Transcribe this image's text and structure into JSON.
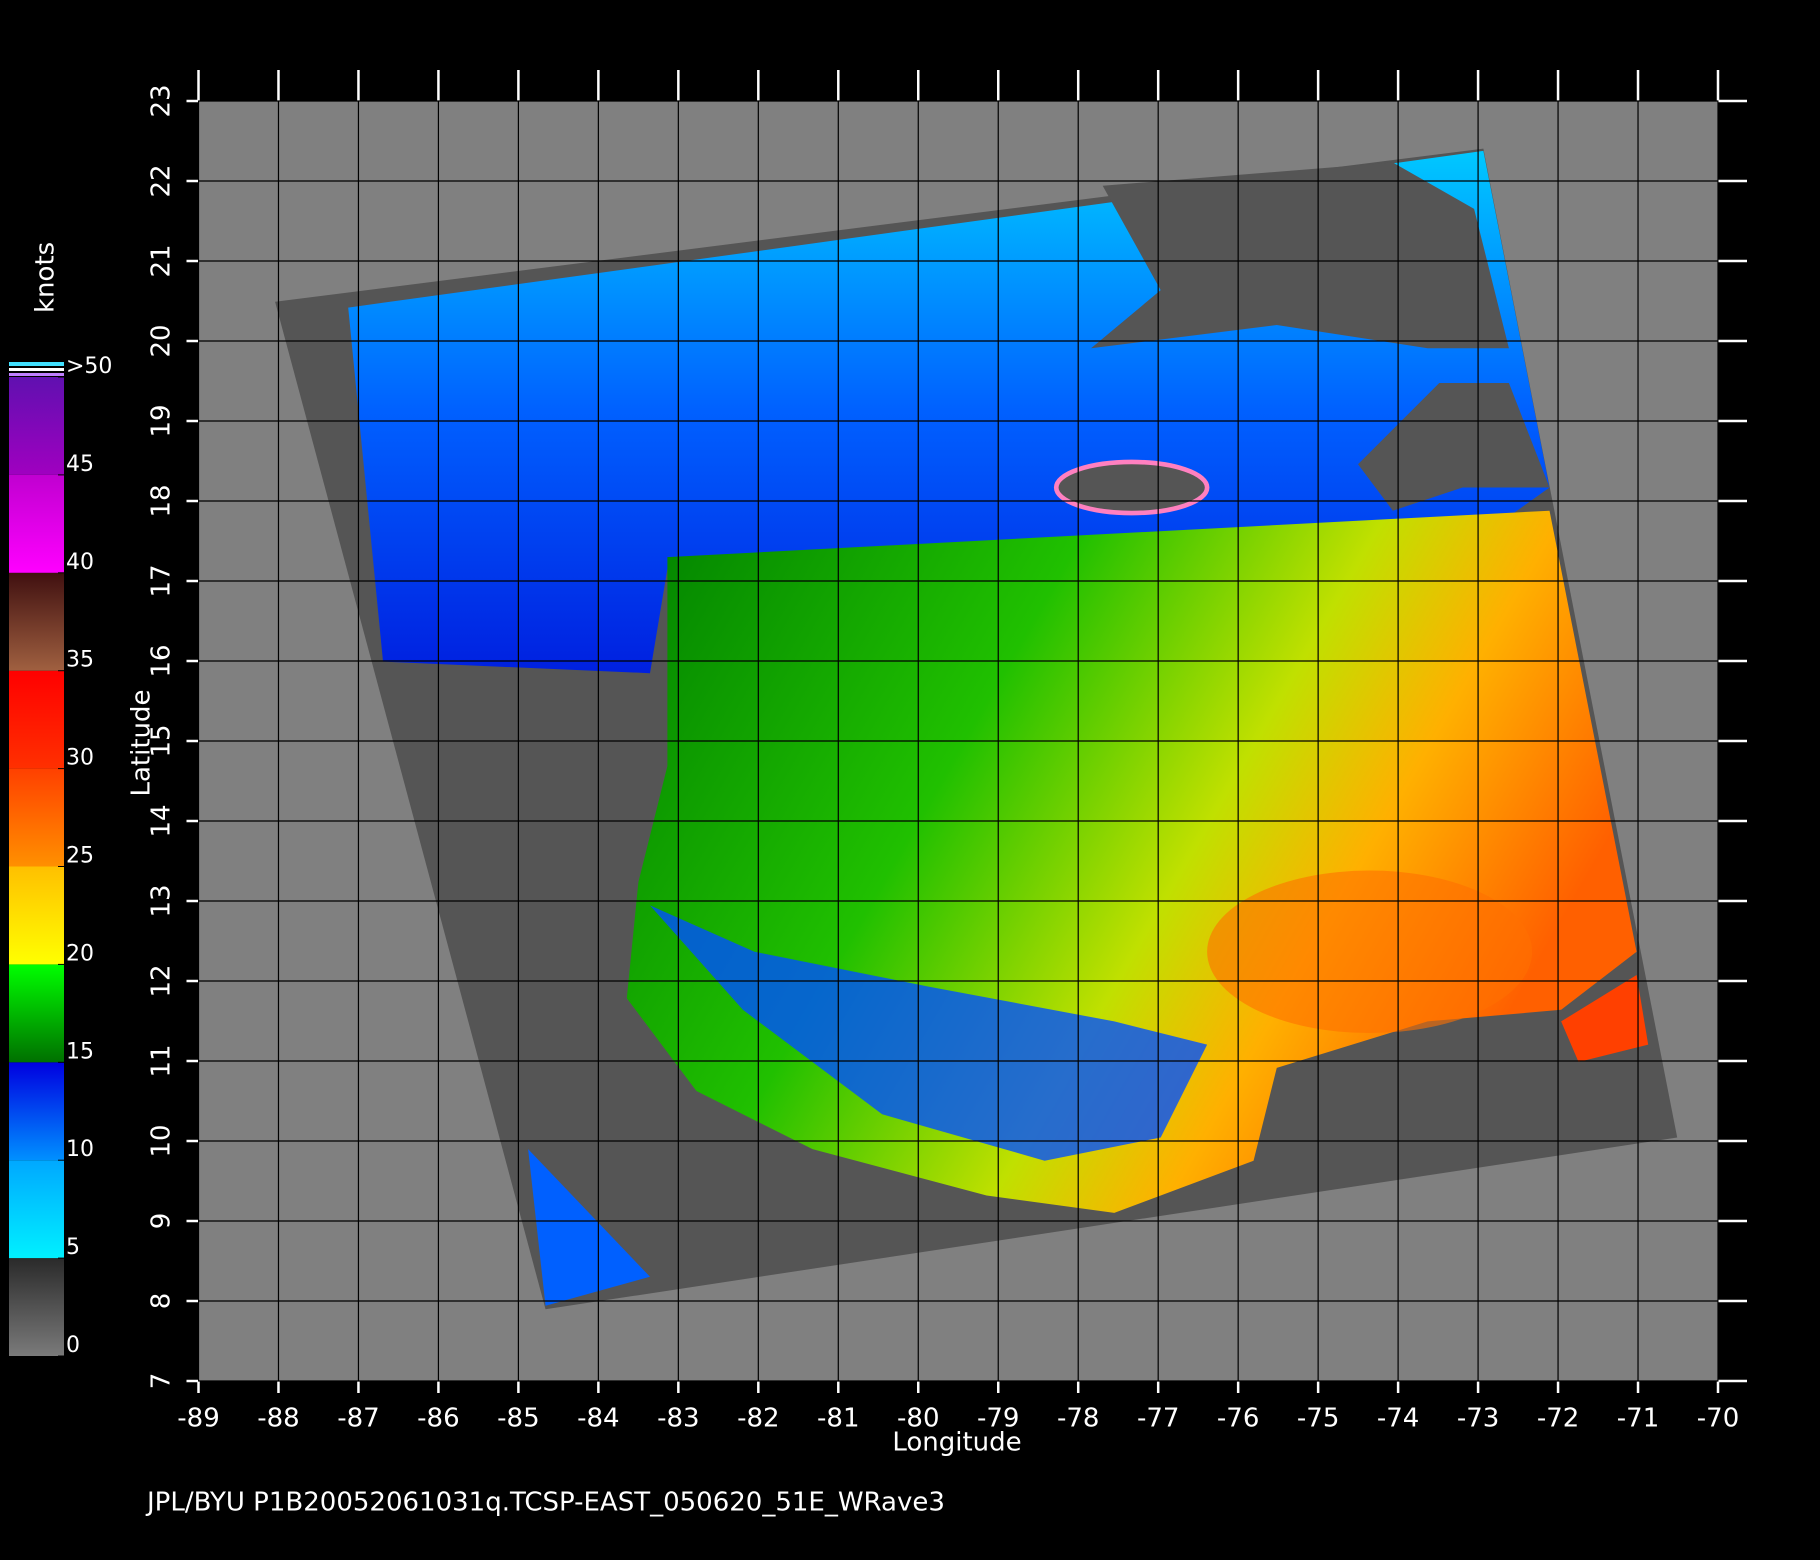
{
  "map": {
    "x_label": "Longitude",
    "y_label": "Latitude",
    "xlim": [
      -89,
      -70
    ],
    "ylim": [
      7,
      23
    ],
    "xticks": [
      -89,
      -88,
      -87,
      -86,
      -85,
      -84,
      -83,
      -82,
      -81,
      -80,
      -79,
      -78,
      -77,
      -76,
      -75,
      -74,
      -73,
      -72,
      -71,
      -70
    ],
    "yticks": [
      7,
      8,
      9,
      10,
      11,
      12,
      13,
      14,
      15,
      16,
      17,
      18,
      19,
      20,
      21,
      22,
      23
    ],
    "grid": true
  },
  "colorbar": {
    "title": "knots",
    "ticks": [
      0,
      5,
      10,
      15,
      20,
      25,
      30,
      35,
      40,
      45,
      {
        "value": 50,
        "label": ">50"
      }
    ],
    "colors": [
      [
        "#7a7a7a",
        "#2a2a2a"
      ],
      [
        "#00f0ff",
        "#00a8ff"
      ],
      [
        "#0090ff",
        "#0000e0"
      ],
      [
        "#007000",
        "#00ff00"
      ],
      [
        "#ffff00",
        "#ffc000"
      ],
      [
        "#ff9000",
        "#ff4000"
      ],
      [
        "#ff3000",
        "#ff0000"
      ],
      [
        "#a06040",
        "#401010"
      ],
      [
        "#ff00ff",
        "#c000d0"
      ],
      [
        "#a000c0",
        "#6010b0"
      ]
    ]
  },
  "footer": "JPL/BYU  P1B20052061031q.TCSP-EAST_050620_51E_WRave3"
}
